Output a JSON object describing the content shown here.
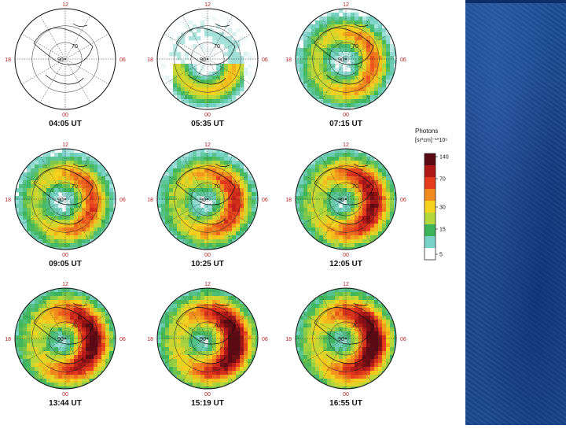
{
  "slide": {
    "background": "#ffffff",
    "side_panel_color": "#1a4a90"
  },
  "chart_data": {
    "type": "heatmap",
    "description_kind": "polar maps",
    "clock_labels": {
      "top": "12",
      "bottom": "00",
      "left": "18",
      "right": "06"
    },
    "latitude_labels": [
      "90",
      "70"
    ],
    "panels": [
      {
        "time": "04:05 UT",
        "intensity_level": 0.0
      },
      {
        "time": "05:35 UT",
        "intensity_level": 0.15
      },
      {
        "time": "07:15 UT",
        "intensity_level": 0.45
      },
      {
        "time": "09:05 UT",
        "intensity_level": 0.55
      },
      {
        "time": "10:25 UT",
        "intensity_level": 0.62
      },
      {
        "time": "12:05 UT",
        "intensity_level": 0.8
      },
      {
        "time": "13:44 UT",
        "intensity_level": 0.9
      },
      {
        "time": "15:19 UT",
        "intensity_level": 0.95
      },
      {
        "time": "16:55 UT",
        "intensity_level": 0.95
      }
    ],
    "colorbar": {
      "title": "Photons",
      "unit_label": "[sr*cm]⁻¹*10⁶",
      "ticks": [
        "140",
        "70",
        "30",
        "15",
        "5"
      ],
      "tick_values": [
        140,
        70,
        30,
        15,
        5
      ],
      "colors": [
        "#5a0a14",
        "#b01818",
        "#e63c1e",
        "#f08c1e",
        "#f5d21e",
        "#b4d73c",
        "#3cb45a",
        "#78d2c8",
        "#ffffff"
      ]
    }
  }
}
